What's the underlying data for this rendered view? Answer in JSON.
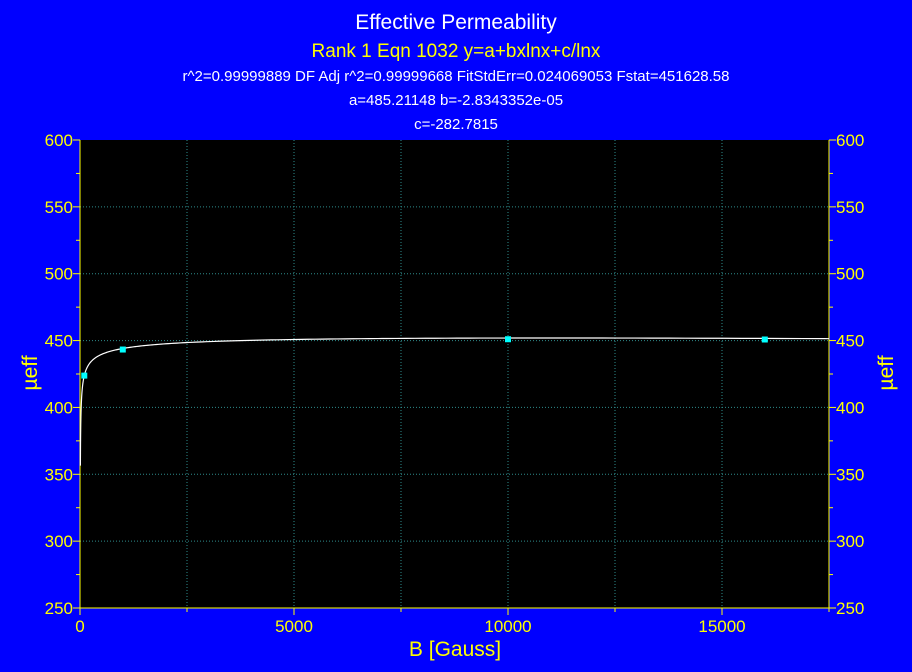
{
  "chart_data": {
    "type": "scatter",
    "title": "Effective Permeability",
    "subtitle": "Rank 1  Eqn 1032  y=a+bxlnx+c/lnx",
    "stats_line": "r^2=0.99999889  DF Adj r^2=0.99999668  FitStdErr=0.024069053  Fstat=451628.58",
    "params_line1": "a=485.21148 b=-2.8343352e-05",
    "params_line2": "c=-282.7815",
    "xlabel": "B [Gauss]",
    "ylabel": "µeff",
    "ylabel_right": "µeff",
    "xlim": [
      0,
      17500
    ],
    "ylim": [
      250,
      600
    ],
    "x_ticks": [
      0,
      5000,
      10000,
      15000
    ],
    "x_tick_labels": [
      "0",
      "5000",
      "10000",
      "15000"
    ],
    "y_ticks": [
      250,
      300,
      350,
      400,
      450,
      500,
      550,
      600
    ],
    "y_tick_labels": [
      "250",
      "300",
      "350",
      "400",
      "450",
      "500",
      "550",
      "600"
    ],
    "grid": true,
    "fit": {
      "a": 485.21148,
      "b": -2.8343352e-05,
      "c": -282.7815
    },
    "points": [
      {
        "x": 100,
        "y": 423.8
      },
      {
        "x": 1000,
        "y": 443.3
      },
      {
        "x": 10000,
        "y": 451.0
      },
      {
        "x": 16000,
        "y": 450.8
      }
    ],
    "colors": {
      "background": "#0000FF",
      "plot_area": "#000000",
      "text": "#FFFF00",
      "title_text": "#FFFFFF",
      "axis": "#FFFF00",
      "grid": "#2E8B8B",
      "fit_line": "#FFFFFF",
      "points": "#00FFFF"
    }
  }
}
